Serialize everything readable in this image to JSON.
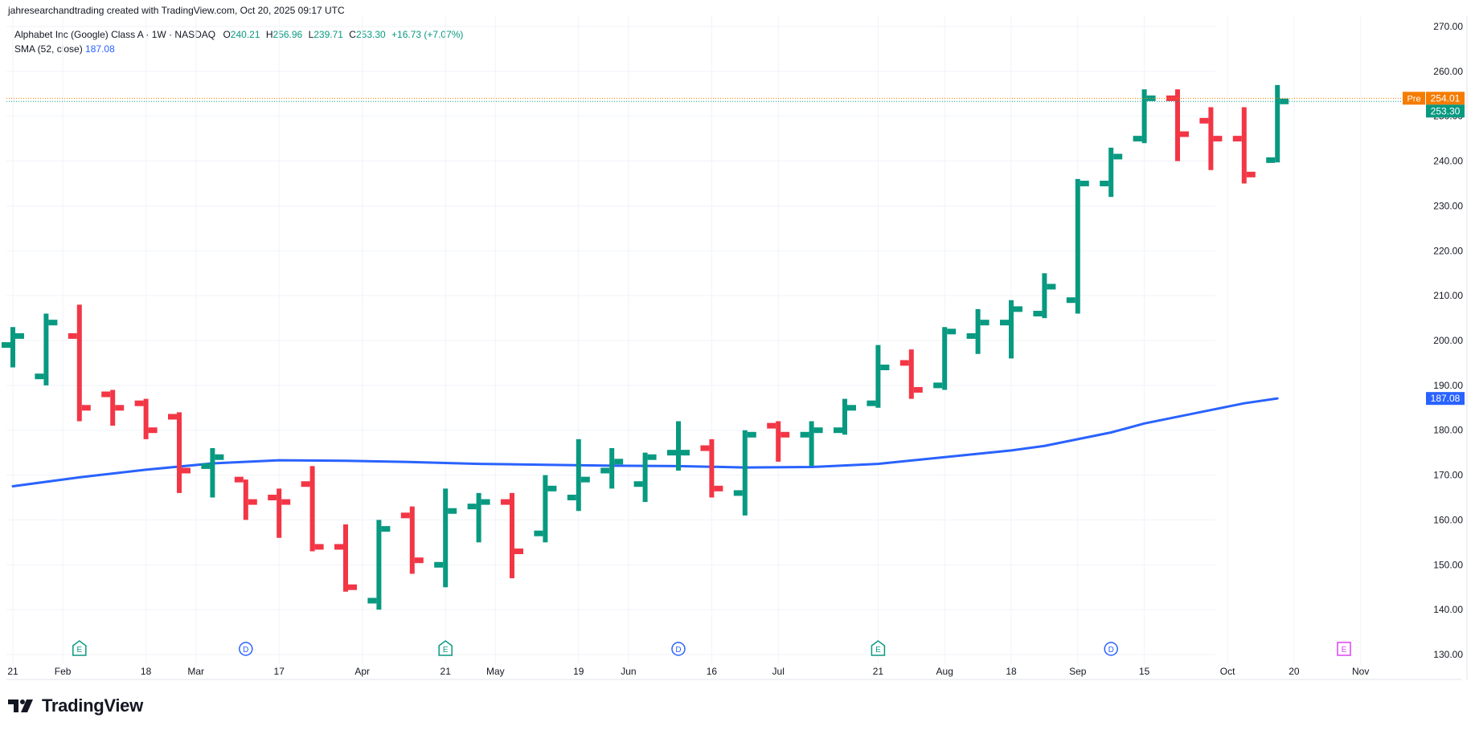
{
  "attribution": "jahresearchandtrading created with TradingView.com, Oct 20, 2025 09:17 UTC",
  "legend": {
    "symbol": "Alphabet Inc (Google) Class A · 1W · NASDAQ",
    "open_label": "O",
    "open": "240.21",
    "high_label": "H",
    "high": "256.96",
    "low_label": "L",
    "low": "239.71",
    "close_label": "C",
    "close": "253.30",
    "change": "+16.73 (+7.07%)",
    "sma_label": "SMA (52, close)",
    "sma_value": "187.08"
  },
  "brand": {
    "name": "TradingView",
    "logo_icon": "tradingview-logo-icon"
  },
  "colors": {
    "up": "#089981",
    "down": "#f23645",
    "sma": "#2962ff",
    "pre": "#f57c00",
    "grid": "#f0f3fa",
    "event_e": "#089981",
    "event_d": "#2962ff",
    "event_future": "#e040fb"
  },
  "chart_data": {
    "type": "bar",
    "style": "ohlc",
    "timeframe": "1W",
    "ylim": [
      130,
      270
    ],
    "yticks": [
      130,
      140,
      150,
      160,
      170,
      180,
      190,
      200,
      210,
      220,
      230,
      240,
      250,
      260,
      270
    ],
    "ytick_labels": [
      "130.00",
      "140.00",
      "150.00",
      "160.00",
      "170.00",
      "180.00",
      "190.00",
      "200.00",
      "210.00",
      "220.00",
      "230.00",
      "240.00",
      "250.00",
      "260.00",
      "270.00"
    ],
    "xtick_labels": [
      {
        "label": "21",
        "week": 0
      },
      {
        "label": "Feb",
        "week": 1.5
      },
      {
        "label": "18",
        "week": 4
      },
      {
        "label": "Mar",
        "week": 5.5
      },
      {
        "label": "17",
        "week": 8
      },
      {
        "label": "Apr",
        "week": 10.5
      },
      {
        "label": "21",
        "week": 13
      },
      {
        "label": "May",
        "week": 14.5
      },
      {
        "label": "19",
        "week": 17
      },
      {
        "label": "Jun",
        "week": 18.5
      },
      {
        "label": "16",
        "week": 21
      },
      {
        "label": "Jul",
        "week": 23
      },
      {
        "label": "21",
        "week": 26
      },
      {
        "label": "Aug",
        "week": 28
      },
      {
        "label": "18",
        "week": 30
      },
      {
        "label": "Sep",
        "week": 32
      },
      {
        "label": "15",
        "week": 34
      },
      {
        "label": "Oct",
        "week": 36.5
      },
      {
        "label": "20",
        "week": 38.5
      },
      {
        "label": "Nov",
        "week": 40.5
      }
    ],
    "bars": [
      {
        "o": 199,
        "h": 203,
        "l": 194,
        "c": 201
      },
      {
        "o": 192,
        "h": 206,
        "l": 190,
        "c": 204
      },
      {
        "o": 201,
        "h": 208,
        "l": 182,
        "c": 185
      },
      {
        "o": 188,
        "h": 189,
        "l": 181,
        "c": 185
      },
      {
        "o": 186,
        "h": 187,
        "l": 178,
        "c": 180
      },
      {
        "o": 183,
        "h": 184,
        "l": 166,
        "c": 171
      },
      {
        "o": 172,
        "h": 176,
        "l": 165,
        "c": 174
      },
      {
        "o": 169,
        "h": 169,
        "l": 160,
        "c": 164
      },
      {
        "o": 165,
        "h": 167,
        "l": 156,
        "c": 164
      },
      {
        "o": 168,
        "h": 172,
        "l": 153,
        "c": 154
      },
      {
        "o": 154,
        "h": 159,
        "l": 144,
        "c": 145
      },
      {
        "o": 142,
        "h": 160,
        "l": 140,
        "c": 158
      },
      {
        "o": 161,
        "h": 163,
        "l": 148,
        "c": 151
      },
      {
        "o": 150,
        "h": 167,
        "l": 145,
        "c": 162
      },
      {
        "o": 163,
        "h": 166,
        "l": 155,
        "c": 164
      },
      {
        "o": 164,
        "h": 166,
        "l": 147,
        "c": 153
      },
      {
        "o": 157,
        "h": 170,
        "l": 155,
        "c": 167
      },
      {
        "o": 165,
        "h": 178,
        "l": 162,
        "c": 169
      },
      {
        "o": 171,
        "h": 176,
        "l": 167,
        "c": 173
      },
      {
        "o": 168,
        "h": 175,
        "l": 164,
        "c": 174
      },
      {
        "o": 175,
        "h": 182,
        "l": 171,
        "c": 175
      },
      {
        "o": 176,
        "h": 178,
        "l": 165,
        "c": 167
      },
      {
        "o": 166,
        "h": 180,
        "l": 161,
        "c": 179
      },
      {
        "o": 181,
        "h": 182,
        "l": 173,
        "c": 179
      },
      {
        "o": 179,
        "h": 182,
        "l": 172,
        "c": 180
      },
      {
        "o": 180,
        "h": 187,
        "l": 179,
        "c": 185
      },
      {
        "o": 186,
        "h": 199,
        "l": 185,
        "c": 194
      },
      {
        "o": 195,
        "h": 198,
        "l": 187,
        "c": 189
      },
      {
        "o": 190,
        "h": 203,
        "l": 189,
        "c": 202
      },
      {
        "o": 201,
        "h": 207,
        "l": 197,
        "c": 204
      },
      {
        "o": 204,
        "h": 209,
        "l": 196,
        "c": 207
      },
      {
        "o": 206,
        "h": 215,
        "l": 205,
        "c": 212
      },
      {
        "o": 209,
        "h": 236,
        "l": 206,
        "c": 235
      },
      {
        "o": 235,
        "h": 243,
        "l": 232,
        "c": 241
      },
      {
        "o": 245,
        "h": 256,
        "l": 244,
        "c": 254
      },
      {
        "o": 254,
        "h": 256,
        "l": 240,
        "c": 246
      },
      {
        "o": 249,
        "h": 252,
        "l": 238,
        "c": 245
      },
      {
        "o": 245,
        "h": 252,
        "l": 235,
        "c": 237
      },
      {
        "o": 240.21,
        "h": 256.96,
        "l": 239.71,
        "c": 253.3
      }
    ],
    "sma": {
      "name": "SMA (52, close)",
      "points": [
        [
          0,
          167.5
        ],
        [
          2,
          169.5
        ],
        [
          4,
          171.2
        ],
        [
          6,
          172.6
        ],
        [
          8,
          173.3
        ],
        [
          10,
          173.2
        ],
        [
          12,
          172.9
        ],
        [
          14,
          172.5
        ],
        [
          16,
          172.3
        ],
        [
          18,
          172.1
        ],
        [
          20,
          172.0
        ],
        [
          22,
          171.7
        ],
        [
          24,
          171.8
        ],
        [
          26,
          172.5
        ],
        [
          28,
          174.0
        ],
        [
          30,
          175.5
        ],
        [
          31,
          176.5
        ],
        [
          32,
          178.0
        ],
        [
          33,
          179.5
        ],
        [
          34,
          181.5
        ],
        [
          35,
          183.0
        ],
        [
          36,
          184.5
        ],
        [
          37,
          186.0
        ],
        [
          38,
          187.08
        ]
      ]
    },
    "price_labels": [
      {
        "tag": "Pre",
        "value": 254.01,
        "text": "254.01"
      },
      {
        "tag": "",
        "value": 253.3,
        "text": "253.30"
      },
      {
        "tag": "",
        "value": 187.08,
        "text": "187.08"
      }
    ],
    "events": [
      {
        "type": "E",
        "week": 2
      },
      {
        "type": "D",
        "week": 7
      },
      {
        "type": "E",
        "week": 13
      },
      {
        "type": "D",
        "week": 20
      },
      {
        "type": "E",
        "week": 26
      },
      {
        "type": "D",
        "week": 33
      },
      {
        "type": "E",
        "week": 40,
        "future": true
      }
    ],
    "grid": true
  }
}
